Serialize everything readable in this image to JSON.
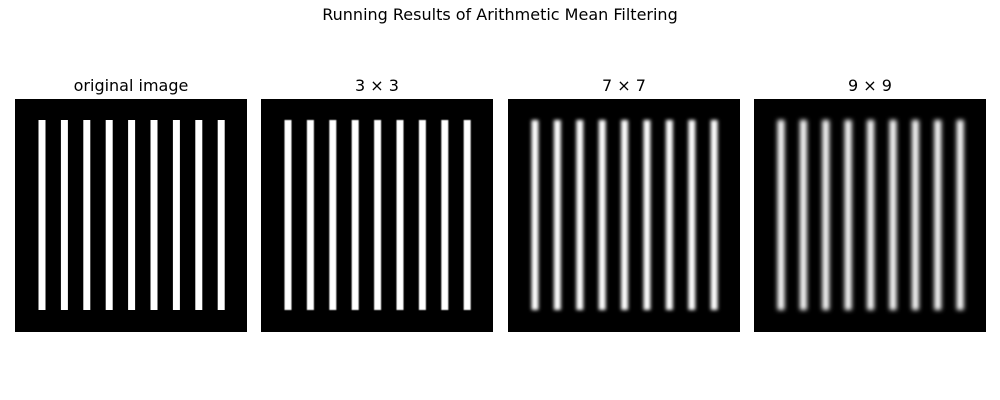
{
  "figure": {
    "title": "Running Results of Arithmetic Mean Filtering"
  },
  "panels": [
    {
      "title": "original image",
      "kernel_size": 1
    },
    {
      "title": "3 × 3",
      "kernel_size": 3
    },
    {
      "title": "7 × 7",
      "kernel_size": 7
    },
    {
      "title": "9 × 9",
      "kernel_size": 9
    }
  ],
  "image": {
    "background_color": "#000000",
    "stripe_color": "#ffffff",
    "stripe_count": 9
  }
}
